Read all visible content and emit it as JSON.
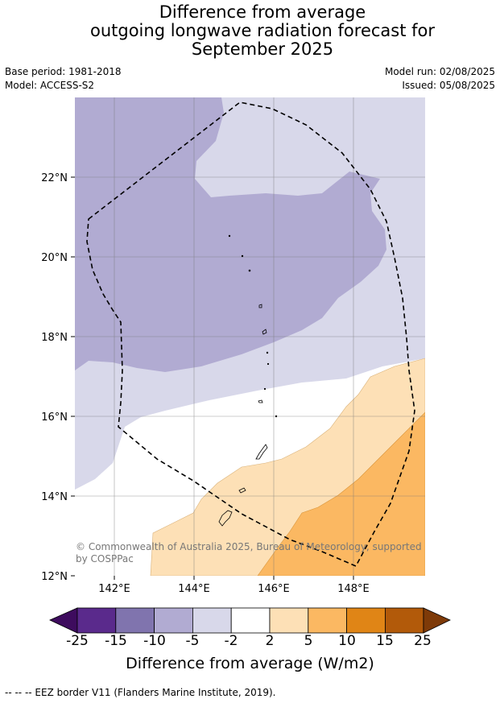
{
  "header": {
    "title_lines": [
      "Difference from average",
      "outgoing longwave radiation forecast for",
      "September 2025"
    ],
    "base_period": "Base period: 1981-2018",
    "model": "Model: ACCESS-S2",
    "model_run": "Model run: 02/08/2025",
    "issued": "Issued: 05/08/2025"
  },
  "map": {
    "lat_labels": [
      "22°N",
      "20°N",
      "18°N",
      "16°N",
      "14°N",
      "12°N"
    ],
    "lon_labels": [
      "142°E",
      "144°E",
      "146°E",
      "148°E"
    ],
    "copyright": "© Commonwealth of Australia 2025, Bureau of Meteorology, supported by COSPPac",
    "colors": {
      "neg_15_10": "#b1abd2",
      "neg_5_2": "#d8d8ea",
      "pos_2_5": "#fde0b6",
      "pos_5_10": "#fbb862",
      "eez": "#000000"
    }
  },
  "colorbar": {
    "title": "Difference from average (W/m2)",
    "ticks": [
      "-25",
      "-15",
      "-10",
      "-5",
      "-2",
      "2",
      "5",
      "10",
      "15",
      "25"
    ],
    "colors": [
      "#3e0c5e",
      "#5a2a8c",
      "#8074ae",
      "#b1abd2",
      "#d8d8ea",
      "#ffffff",
      "#fde0b6",
      "#fbb862",
      "#e08516",
      "#b25a0a",
      "#7e3a08"
    ]
  },
  "footer": {
    "legend": "--  --  -- EEZ border V11 (Flanders Marine Institute, 2019)."
  }
}
